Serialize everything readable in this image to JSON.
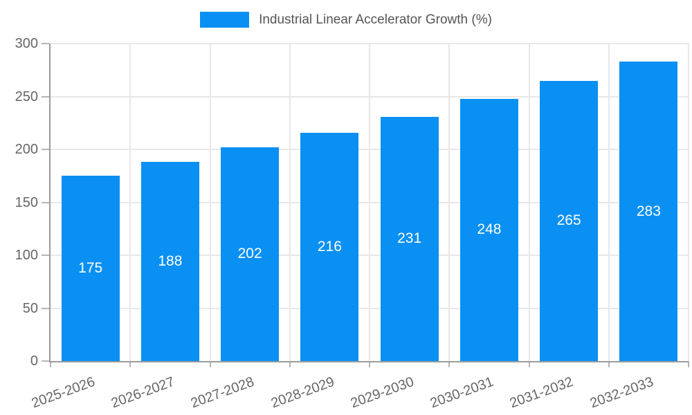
{
  "legend": {
    "label": "Industrial Linear Accelerator Growth (%)"
  },
  "colors": {
    "bar": "#0a90f2",
    "grid": "#e8e8e8",
    "axis": "#9b9b9b",
    "tick_mark": "#b5b5b5",
    "tick_text": "#666666",
    "legend_text": "#555555",
    "value_text": "#ffffff"
  },
  "chart_data": {
    "type": "bar",
    "title": "Industrial Linear Accelerator Growth (%)",
    "categories": [
      "2025-2026",
      "2026-2027",
      "2027-2028",
      "2028-2029",
      "2029-2030",
      "2030-2031",
      "2031-2032",
      "2032-2033"
    ],
    "values": [
      175,
      188,
      202,
      216,
      231,
      248,
      265,
      283
    ],
    "series": [
      {
        "name": "Industrial Linear Accelerator Growth (%)",
        "values": [
          175,
          188,
          202,
          216,
          231,
          248,
          265,
          283
        ]
      }
    ],
    "xlabel": "",
    "ylabel": "",
    "ylim": [
      0,
      300
    ],
    "yticks": [
      0,
      50,
      100,
      150,
      200,
      250,
      300
    ],
    "grid": true,
    "legend_position": "top",
    "value_labels": "inside-center",
    "x_label_rotation_deg": -20
  }
}
